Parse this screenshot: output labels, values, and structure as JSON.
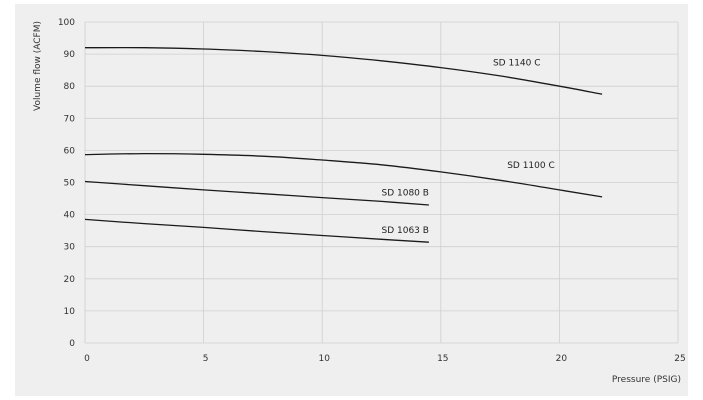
{
  "chart_data": {
    "type": "line",
    "title": "",
    "xlabel": "Pressure (PSIG)",
    "ylabel": "Volume flow (ACFM)",
    "xlim": [
      0,
      25
    ],
    "ylim": [
      0,
      100
    ],
    "xticks": [
      "0",
      "5",
      "10",
      "15",
      "20",
      "25"
    ],
    "yticks": [
      "0",
      "10",
      "20",
      "30",
      "40",
      "50",
      "60",
      "70",
      "80",
      "90",
      "100"
    ],
    "grid": true,
    "legend": "inline labels",
    "series": [
      {
        "name": "SD 1140 C",
        "label_at": [
          17.2,
          86.5
        ],
        "x": [
          0,
          2.5,
          5,
          7.5,
          10,
          12.5,
          15,
          17.5,
          20,
          21.8
        ],
        "y": [
          92.0,
          92.0,
          91.6,
          90.8,
          89.6,
          87.9,
          85.8,
          83.2,
          80.0,
          77.5
        ]
      },
      {
        "name": "SD 1100 C",
        "label_at": [
          17.8,
          54.5
        ],
        "x": [
          0,
          2.5,
          5,
          7.5,
          10,
          12.5,
          15,
          17.5,
          20,
          21.8
        ],
        "y": [
          58.7,
          59.0,
          58.8,
          58.2,
          57.0,
          55.5,
          53.3,
          50.7,
          47.7,
          45.5
        ]
      },
      {
        "name": "SD 1080 B",
        "label_at": [
          12.5,
          46.0
        ],
        "x": [
          0,
          2.5,
          5,
          7.5,
          10,
          12.5,
          14.5
        ],
        "y": [
          50.3,
          49.0,
          47.7,
          46.5,
          45.3,
          44.1,
          43.0
        ]
      },
      {
        "name": "SD 1063 B",
        "label_at": [
          12.5,
          34.3
        ],
        "x": [
          0,
          2.5,
          5,
          7.5,
          10,
          12.5,
          14.5
        ],
        "y": [
          38.5,
          37.2,
          36.0,
          34.7,
          33.5,
          32.3,
          31.4
        ]
      }
    ]
  }
}
